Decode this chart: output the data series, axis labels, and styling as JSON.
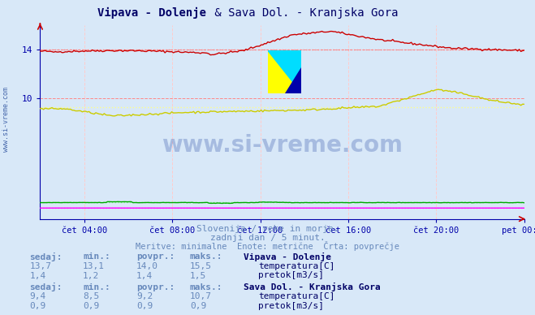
{
  "title": "Vipava - Dolenje & Sava Dol. - Kranjska Gora",
  "bg_color": "#d8e8f8",
  "x_ticks_labels": [
    "čet 04:00",
    "čet 08:00",
    "čet 12:00",
    "čet 16:00",
    "čet 20:00",
    "pet 00:00"
  ],
  "y_min": 0,
  "y_max": 16,
  "grid_color_h": "#ff8888",
  "grid_color_v": "#ffcccc",
  "watermark": "www.si-vreme.com",
  "subtitle1": "Slovenija / reke in morje.",
  "subtitle2": "zadnji dan / 5 minut.",
  "subtitle3": "Meritve: minimalne  Enote: metrične  Črta: povprečje",
  "subtitle_color": "#6688bb",
  "axis_color": "#0000aa",
  "tick_color": "#0000aa",
  "vipava_temp_color": "#cc0000",
  "vipava_flow_color": "#00aa00",
  "sava_temp_color": "#cccc00",
  "sava_flow_color": "#ff00ff",
  "avg_vipava_temp_color": "#ff8888",
  "avg_vipava_flow_color": "#88ff88",
  "avg_sava_temp_color": "#ffff88",
  "avg_sava_flow_color": "#ff88ff",
  "vipava_temp_avg": 14.0,
  "vipava_flow_avg": 1.4,
  "sava_temp_avg": 9.2,
  "sava_flow_avg": 0.9,
  "n_points": 288,
  "vipava_temp_min": 13.1,
  "vipava_temp_max": 15.5,
  "vipava_temp_now": 13.7,
  "vipava_flow_min": 1.2,
  "vipava_flow_max": 1.5,
  "vipava_flow_now": 1.4,
  "sava_temp_min": 8.5,
  "sava_temp_max": 10.7,
  "sava_temp_now": 9.4,
  "sava_flow_min": 0.9,
  "sava_flow_max": 0.9,
  "sava_flow_now": 0.9
}
